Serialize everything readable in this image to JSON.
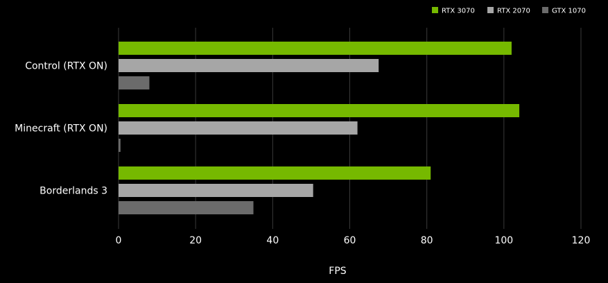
{
  "chart_data": {
    "type": "bar",
    "orientation": "horizontal",
    "categories": [
      "Control (RTX ON)",
      "Minecraft (RTX ON)",
      "Borderlands 3"
    ],
    "series": [
      {
        "name": "RTX 3070",
        "color": "#76b900",
        "values": [
          102,
          104,
          81
        ]
      },
      {
        "name": "RTX 2070",
        "color": "#a6a6a6",
        "values": [
          67.5,
          62,
          50.5
        ]
      },
      {
        "name": "GTX 1070",
        "color": "#6b6b6b",
        "values": [
          8,
          0.5,
          35
        ]
      }
    ],
    "xlabel": "FPS",
    "xlim": [
      0,
      120
    ],
    "xticks": [
      0,
      20,
      40,
      60,
      80,
      100,
      120
    ],
    "grid": "vertical",
    "legend": "top-right"
  }
}
